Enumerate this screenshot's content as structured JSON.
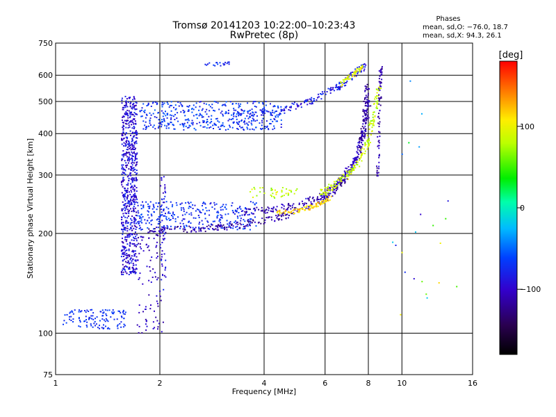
{
  "header": {
    "title_line1": "Tromsø 20141203 10:22:00–10:23:43",
    "title_line2": "RwPretec (8p)",
    "phase_title": "Phases",
    "phase_o": "mean, sd,O: −76.0, 18.7",
    "phase_x": "mean, sd,X:  94.3, 26.1"
  },
  "chart_data": {
    "type": "scatter",
    "xlabel": "Frequency [MHz]",
    "ylabel": "Stationary phase Virtual Height [km]",
    "xscale": "log",
    "yscale": "log",
    "xlim": [
      1,
      16
    ],
    "ylim": [
      75,
      750
    ],
    "xticks": [
      1,
      2,
      4,
      6,
      8,
      10,
      16
    ],
    "xtick_labels": [
      "1",
      "2",
      "4",
      "6",
      "8",
      "10",
      "16"
    ],
    "yticks": [
      75,
      100,
      200,
      300,
      400,
      500,
      600,
      750
    ],
    "ytick_labels": [
      "75",
      "100",
      "200",
      "300",
      "400",
      "500",
      "600",
      "750"
    ],
    "grid": true,
    "colorbar": {
      "label": "[deg]",
      "range": [
        -180,
        180
      ],
      "ticks": [
        100,
        0,
        -100
      ],
      "tick_labels": [
        "100",
        "0",
        "−100"
      ]
    },
    "traces": [
      {
        "kind": "band",
        "x": [
          1.55,
          1.72
        ],
        "y": [
          150,
          520
        ],
        "phase": [
          -115,
          -70
        ],
        "count": 700
      },
      {
        "kind": "band",
        "x": [
          1.72,
          2.05
        ],
        "y": [
          100,
          200
        ],
        "phase": [
          -120,
          -90
        ],
        "count": 90
      },
      {
        "kind": "band",
        "x": [
          2.0,
          2.08
        ],
        "y": [
          135,
          300
        ],
        "phase": [
          -110,
          -70
        ],
        "count": 50
      },
      {
        "kind": "band",
        "x": [
          1.05,
          1.6
        ],
        "y": [
          103,
          118
        ],
        "phase": [
          -80,
          -60
        ],
        "count": 120
      },
      {
        "kind": "band",
        "x": [
          1.75,
          4.5
        ],
        "y": [
          410,
          500
        ],
        "phase": [
          -90,
          -50
        ],
        "count": 420
      },
      {
        "kind": "band",
        "x": [
          1.72,
          3.8
        ],
        "y": [
          205,
          250
        ],
        "phase": [
          -90,
          -55
        ],
        "count": 320
      },
      {
        "kind": "curve",
        "x": [
          1.85,
          2.5,
          3.2,
          4.0,
          5.0,
          6.0,
          6.8,
          7.4,
          7.7,
          7.85,
          7.95
        ],
        "y": [
          205,
          206,
          210,
          218,
          232,
          255,
          290,
          330,
          390,
          470,
          560
        ],
        "phase": -115,
        "spread": 0.03,
        "count": 360
      },
      {
        "kind": "curve",
        "x": [
          3.5,
          4.2,
          5.0,
          6.0,
          6.8,
          7.4,
          7.8,
          8.1
        ],
        "y": [
          232,
          236,
          244,
          262,
          295,
          340,
          410,
          510
        ],
        "phase": -105,
        "spread": 0.03,
        "count": 220
      },
      {
        "kind": "curve",
        "x": [
          4.3,
          5.0,
          5.6,
          6.2
        ],
        "y": [
          230,
          234,
          242,
          255
        ],
        "phase": 115,
        "spread": 0.02,
        "count": 90
      },
      {
        "kind": "curve",
        "x": [
          5.8,
          6.6,
          7.4,
          8.0,
          8.3,
          8.6
        ],
        "y": [
          262,
          285,
          320,
          380,
          460,
          560
        ],
        "phase": 85,
        "spread": 0.03,
        "count": 180
      },
      {
        "kind": "curve",
        "x": [
          3.3,
          4.5,
          5.5,
          6.5,
          7.2,
          7.8
        ],
        "y": [
          460,
          470,
          505,
          550,
          600,
          640
        ],
        "phase": -85,
        "spread": 0.03,
        "count": 180
      },
      {
        "kind": "curve",
        "x": [
          6.6,
          7.2,
          7.7
        ],
        "y": [
          560,
          600,
          640
        ],
        "phase": 95,
        "spread": 0.02,
        "count": 50
      },
      {
        "kind": "curve",
        "x": [
          8.5,
          8.6,
          8.65,
          8.7
        ],
        "y": [
          300,
          420,
          540,
          640
        ],
        "phase": -110,
        "spread": 0.02,
        "count": 70
      },
      {
        "kind": "band",
        "x": [
          3.6,
          5.0
        ],
        "y": [
          255,
          275
        ],
        "phase": [
          60,
          110
        ],
        "count": 40
      },
      {
        "kind": "band",
        "x": [
          2.6,
          3.2
        ],
        "y": [
          640,
          660
        ],
        "phase": [
          -90,
          -60
        ],
        "count": 20
      },
      {
        "kind": "band",
        "x": [
          9.0,
          14.5
        ],
        "y": [
          110,
          600
        ],
        "phase": [
          -110,
          120
        ],
        "count": 22
      }
    ]
  }
}
